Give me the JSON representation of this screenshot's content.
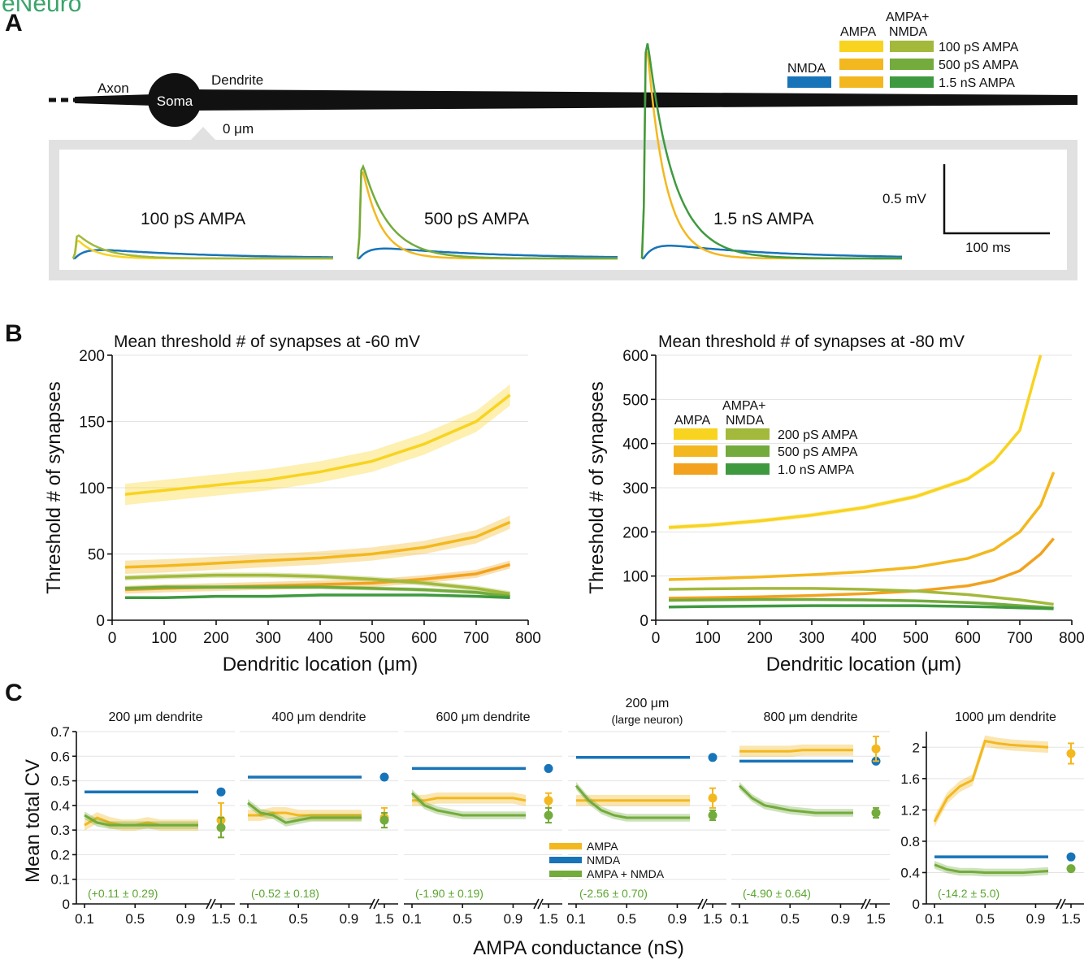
{
  "colors": {
    "nmda": "#1874b8",
    "ampa_light": "#f8d320",
    "ampa_mid": "#f3b81f",
    "ampa_dark": "#f2a21e",
    "an_light": "#a2b93b",
    "an_mid": "#73ab3c",
    "an_dark": "#3f9a3f",
    "header_logo": "#3aa46b"
  },
  "header": {
    "logo_text": "eNeuro"
  },
  "panelA": {
    "label": "A",
    "axon": "Axon",
    "soma": "Soma",
    "dendrite": "Dendrite",
    "origin": "0 μm",
    "legend": {
      "col_ampa": "AMPA",
      "col_ampa_nmda_1": "AMPA+",
      "col_ampa_nmda_2": "NMDA",
      "nmda": "NMDA",
      "rows": [
        "100 pS AMPA",
        "500 pS AMPA",
        "1.5 nS AMPA"
      ]
    },
    "traces": [
      "100 pS AMPA",
      "500 pS AMPA",
      "1.5 nS AMPA"
    ],
    "scale_v": "0.5 mV",
    "scale_t": "100 ms"
  },
  "panelB": {
    "label": "B",
    "legend": {
      "col_ampa": "AMPA",
      "col_an_1": "AMPA+",
      "col_an_2": "NMDA",
      "rows": [
        "200 pS AMPA",
        "500 pS AMPA",
        "1.0 nS AMPA"
      ]
    }
  },
  "panelC": {
    "label": "C",
    "ylabel": "Mean total CV",
    "xlabel": "AMPA conductance (nS)",
    "legend": [
      "AMPA",
      "NMDA",
      "AMPA + NMDA"
    ]
  },
  "chart_data": [
    {
      "type": "line",
      "title": "Mean threshold # of synapses at -60 mV",
      "xlabel": "Dendritic location (μm)",
      "ylabel": "Threshold # of synapses",
      "xlim": [
        0,
        800
      ],
      "ylim": [
        0,
        200
      ],
      "xticks": [
        0,
        100,
        200,
        300,
        400,
        500,
        600,
        700,
        800
      ],
      "yticks": [
        0,
        50,
        100,
        150,
        200
      ],
      "x": [
        25,
        100,
        200,
        300,
        400,
        500,
        600,
        700,
        765
      ],
      "series": [
        {
          "name": "200 pS AMPA (AMPA)",
          "color": "#f8d320",
          "values": [
            95,
            98,
            102,
            106,
            112,
            120,
            133,
            150,
            170
          ],
          "band": 8
        },
        {
          "name": "500 pS AMPA (AMPA)",
          "color": "#f3b81f",
          "values": [
            40,
            41,
            43,
            45,
            47,
            50,
            55,
            63,
            74
          ],
          "band": 5
        },
        {
          "name": "1.0 nS AMPA (AMPA)",
          "color": "#f2a21e",
          "values": [
            23,
            24,
            25,
            26,
            27,
            28,
            31,
            35,
            42
          ],
          "band": 3
        },
        {
          "name": "200 pS AMPA (AMPA+NMDA)",
          "color": "#a2b93b",
          "values": [
            32,
            33,
            34,
            34,
            33,
            31,
            28,
            24,
            20
          ],
          "band": 2
        },
        {
          "name": "500 pS AMPA (AMPA+NMDA)",
          "color": "#73ab3c",
          "values": [
            24,
            25,
            25,
            25,
            25,
            24,
            23,
            21,
            18
          ],
          "band": 1.5
        },
        {
          "name": "1.0 nS AMPA (AMPA+NMDA)",
          "color": "#3f9a3f",
          "values": [
            17,
            17,
            18,
            18,
            19,
            19,
            19,
            18,
            17
          ],
          "band": 1
        }
      ]
    },
    {
      "type": "line",
      "title": "Mean threshold # of synapses at -80 mV",
      "xlabel": "Dendritic location (μm)",
      "ylabel": "Threshold # of synapses",
      "xlim": [
        0,
        800
      ],
      "ylim": [
        0,
        600
      ],
      "xticks": [
        0,
        100,
        200,
        300,
        400,
        500,
        600,
        700,
        800
      ],
      "yticks": [
        0,
        100,
        200,
        300,
        400,
        500,
        600
      ],
      "x": [
        25,
        100,
        200,
        300,
        400,
        500,
        600,
        650,
        700,
        740,
        765
      ],
      "series": [
        {
          "name": "200 pS AMPA (AMPA)",
          "color": "#f8d320",
          "values": [
            210,
            215,
            225,
            238,
            255,
            280,
            320,
            360,
            430,
            600,
            null
          ],
          "band": 5
        },
        {
          "name": "500 pS AMPA (AMPA)",
          "color": "#f3b81f",
          "values": [
            92,
            94,
            98,
            103,
            110,
            120,
            140,
            160,
            200,
            260,
            335
          ],
          "band": 3
        },
        {
          "name": "1.0 nS AMPA (AMPA)",
          "color": "#f2a21e",
          "values": [
            50,
            51,
            53,
            56,
            60,
            66,
            78,
            90,
            112,
            150,
            185
          ],
          "band": 2
        },
        {
          "name": "200 pS AMPA (AMPA+NMDA)",
          "color": "#a2b93b",
          "values": [
            70,
            71,
            72,
            72,
            70,
            66,
            58,
            52,
            46,
            40,
            36
          ],
          "band": 2
        },
        {
          "name": "500 pS AMPA (AMPA+NMDA)",
          "color": "#73ab3c",
          "values": [
            45,
            46,
            47,
            47,
            46,
            44,
            40,
            37,
            33,
            30,
            28
          ],
          "band": 1.5
        },
        {
          "name": "1.0 nS AMPA (AMPA+NMDA)",
          "color": "#3f9a3f",
          "values": [
            30,
            31,
            32,
            33,
            33,
            33,
            31,
            30,
            28,
            27,
            26
          ],
          "band": 1
        }
      ]
    },
    {
      "type": "line",
      "subplots": [
        {
          "title": "200 μm dendrite",
          "note": "(+0.11 ± 0.29)",
          "ylim": [
            0,
            0.7
          ],
          "ampa": [
            0.32,
            0.35,
            0.33,
            0.32,
            0.32,
            0.33,
            0.32,
            0.32,
            0.32,
            0.32
          ],
          "nmda": 0.455,
          "an": [
            0.36,
            0.33,
            0.32,
            0.32,
            0.32,
            0.32,
            0.32,
            0.32,
            0.32,
            0.32
          ],
          "ampa_15": [
            0.34,
            0.07
          ],
          "nmda_15": 0.455,
          "an_15": [
            0.31,
            0.04
          ]
        },
        {
          "title": "400 μm dendrite",
          "note": "(-0.52 ± 0.18)",
          "ylim": [
            0,
            0.7
          ],
          "ampa": [
            0.36,
            0.36,
            0.37,
            0.37,
            0.36,
            0.36,
            0.36,
            0.36,
            0.36,
            0.36
          ],
          "nmda": 0.515,
          "an": [
            0.41,
            0.37,
            0.36,
            0.33,
            0.34,
            0.35,
            0.35,
            0.35,
            0.35,
            0.35
          ],
          "ampa_15": [
            0.35,
            0.04
          ],
          "nmda_15": 0.515,
          "an_15": [
            0.34,
            0.03
          ]
        },
        {
          "title": "600 μm dendrite",
          "note": "(-1.90 ± 0.19)",
          "ylim": [
            0,
            0.7
          ],
          "ampa": [
            0.42,
            0.42,
            0.43,
            0.43,
            0.43,
            0.43,
            0.43,
            0.43,
            0.43,
            0.42
          ],
          "nmda": 0.55,
          "an": [
            0.45,
            0.4,
            0.38,
            0.37,
            0.36,
            0.36,
            0.36,
            0.36,
            0.36,
            0.36
          ],
          "ampa_15": [
            0.42,
            0.03
          ],
          "nmda_15": 0.55,
          "an_15": [
            0.36,
            0.03
          ]
        },
        {
          "title": "200 μm",
          "subtitle": "(large neuron)",
          "note": "(-2.56 ± 0.70)",
          "ylim": [
            0,
            0.7
          ],
          "ampa": [
            0.42,
            0.42,
            0.42,
            0.42,
            0.42,
            0.42,
            0.42,
            0.42,
            0.42,
            0.42
          ],
          "nmda": 0.595,
          "an": [
            0.48,
            0.42,
            0.38,
            0.36,
            0.35,
            0.35,
            0.35,
            0.35,
            0.35,
            0.35
          ],
          "ampa_15": [
            0.43,
            0.04
          ],
          "nmda_15": 0.595,
          "an_15": [
            0.36,
            0.02
          ]
        },
        {
          "title": "800 μm dendrite",
          "note": "(-4.90 ± 0.64)",
          "ylim": [
            0,
            0.7
          ],
          "ampa": [
            0.62,
            0.62,
            0.62,
            0.62,
            0.62,
            0.625,
            0.625,
            0.625,
            0.625,
            0.625
          ],
          "nmda": 0.58,
          "an": [
            0.48,
            0.43,
            0.4,
            0.39,
            0.38,
            0.375,
            0.37,
            0.37,
            0.37,
            0.37
          ],
          "ampa_15": [
            0.63,
            0.05
          ],
          "nmda_15": 0.58,
          "an_15": [
            0.37,
            0.02
          ]
        },
        {
          "title": "1000 μm dendrite",
          "note": "(-14.2 ± 5.0)",
          "ylim": [
            0,
            2.2
          ],
          "yticks": [
            0,
            0.4,
            0.8,
            1.2,
            1.6,
            2
          ],
          "ampa": [
            1.05,
            1.35,
            1.5,
            1.58,
            2.08,
            2.05,
            2.03,
            2.02,
            2.01,
            2.0
          ],
          "nmda": 0.6,
          "an": [
            0.5,
            0.44,
            0.41,
            0.41,
            0.4,
            0.4,
            0.4,
            0.4,
            0.41,
            0.42
          ],
          "ampa_15": [
            1.92,
            0.13
          ],
          "nmda_15": 0.6,
          "an_15": [
            0.45,
            0.02
          ]
        }
      ],
      "x": [
        0.1,
        0.2,
        0.3,
        0.4,
        0.5,
        0.6,
        0.7,
        0.8,
        0.9,
        1.0
      ],
      "xticks": [
        "0.1",
        "0.5",
        "0.9",
        "1.5"
      ],
      "yticks": [
        0,
        0.1,
        0.2,
        0.3,
        0.4,
        0.5,
        0.6,
        0.7
      ]
    }
  ]
}
